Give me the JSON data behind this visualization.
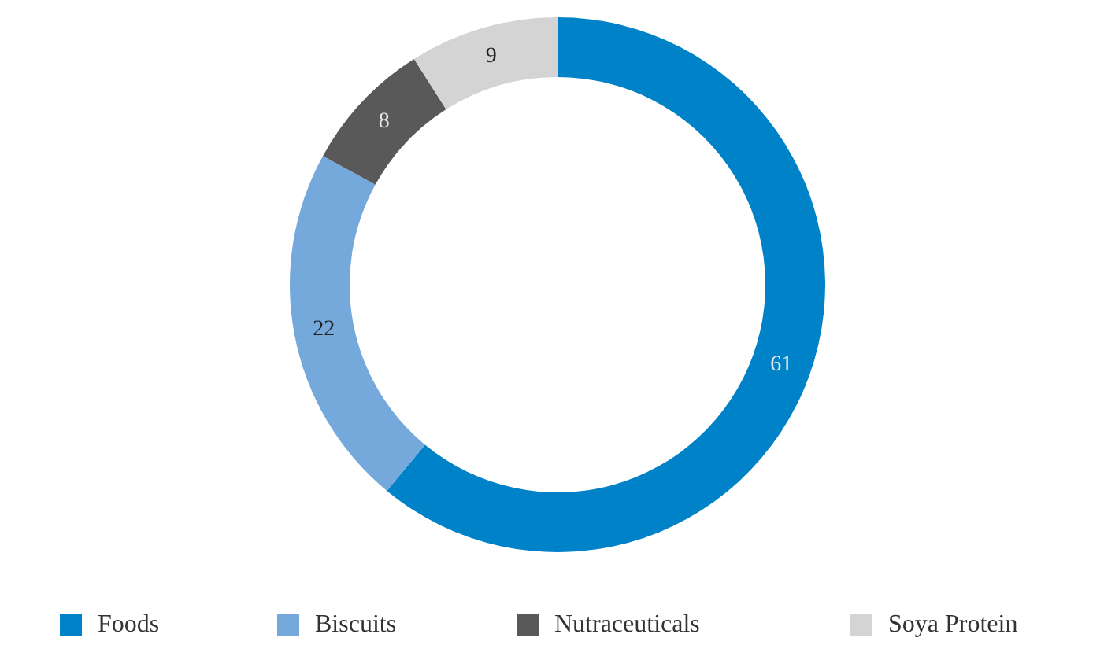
{
  "chart_data": {
    "type": "donut",
    "categories": [
      "Foods",
      "Biscuits",
      "Nutraceuticals",
      "Soya Protein"
    ],
    "values": [
      61,
      22,
      8,
      9
    ],
    "colors": [
      "#0082c8",
      "#75a9db",
      "#595959",
      "#d4d4d4"
    ],
    "data_labels": true,
    "legend": "bottom"
  }
}
